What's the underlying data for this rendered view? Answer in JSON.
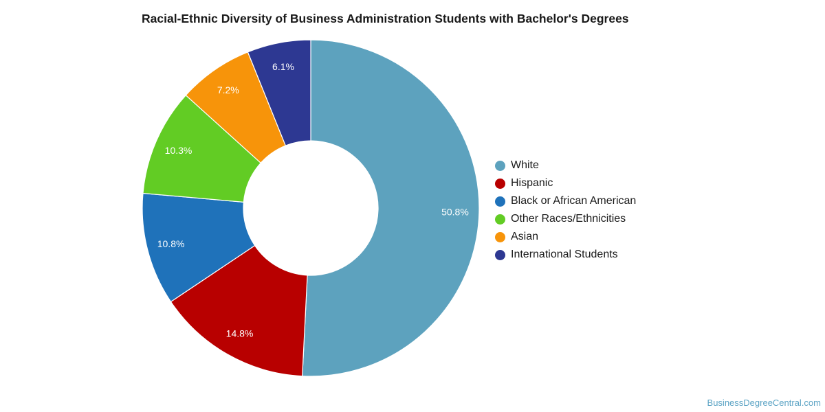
{
  "chart_data": {
    "type": "pie",
    "title": "Racial-Ethnic Diversity of Business Administration Students with Bachelor's Degrees",
    "donut": true,
    "legend_position": "right",
    "categories": [
      "White",
      "Hispanic",
      "Black or African American",
      "Other Races/Ethnicities",
      "Asian",
      "International Students"
    ],
    "values": [
      50.8,
      14.8,
      10.8,
      10.3,
      7.2,
      6.1
    ],
    "data_labels": [
      "50.8%",
      "14.8%",
      "10.8%",
      "10.3%",
      "7.2%",
      "6.1%"
    ],
    "colors": [
      "#5da2be",
      "#b80000",
      "#1f72ba",
      "#62cc24",
      "#f7940a",
      "#2d3892"
    ]
  },
  "watermark": "BusinessDegreeCentral.com"
}
